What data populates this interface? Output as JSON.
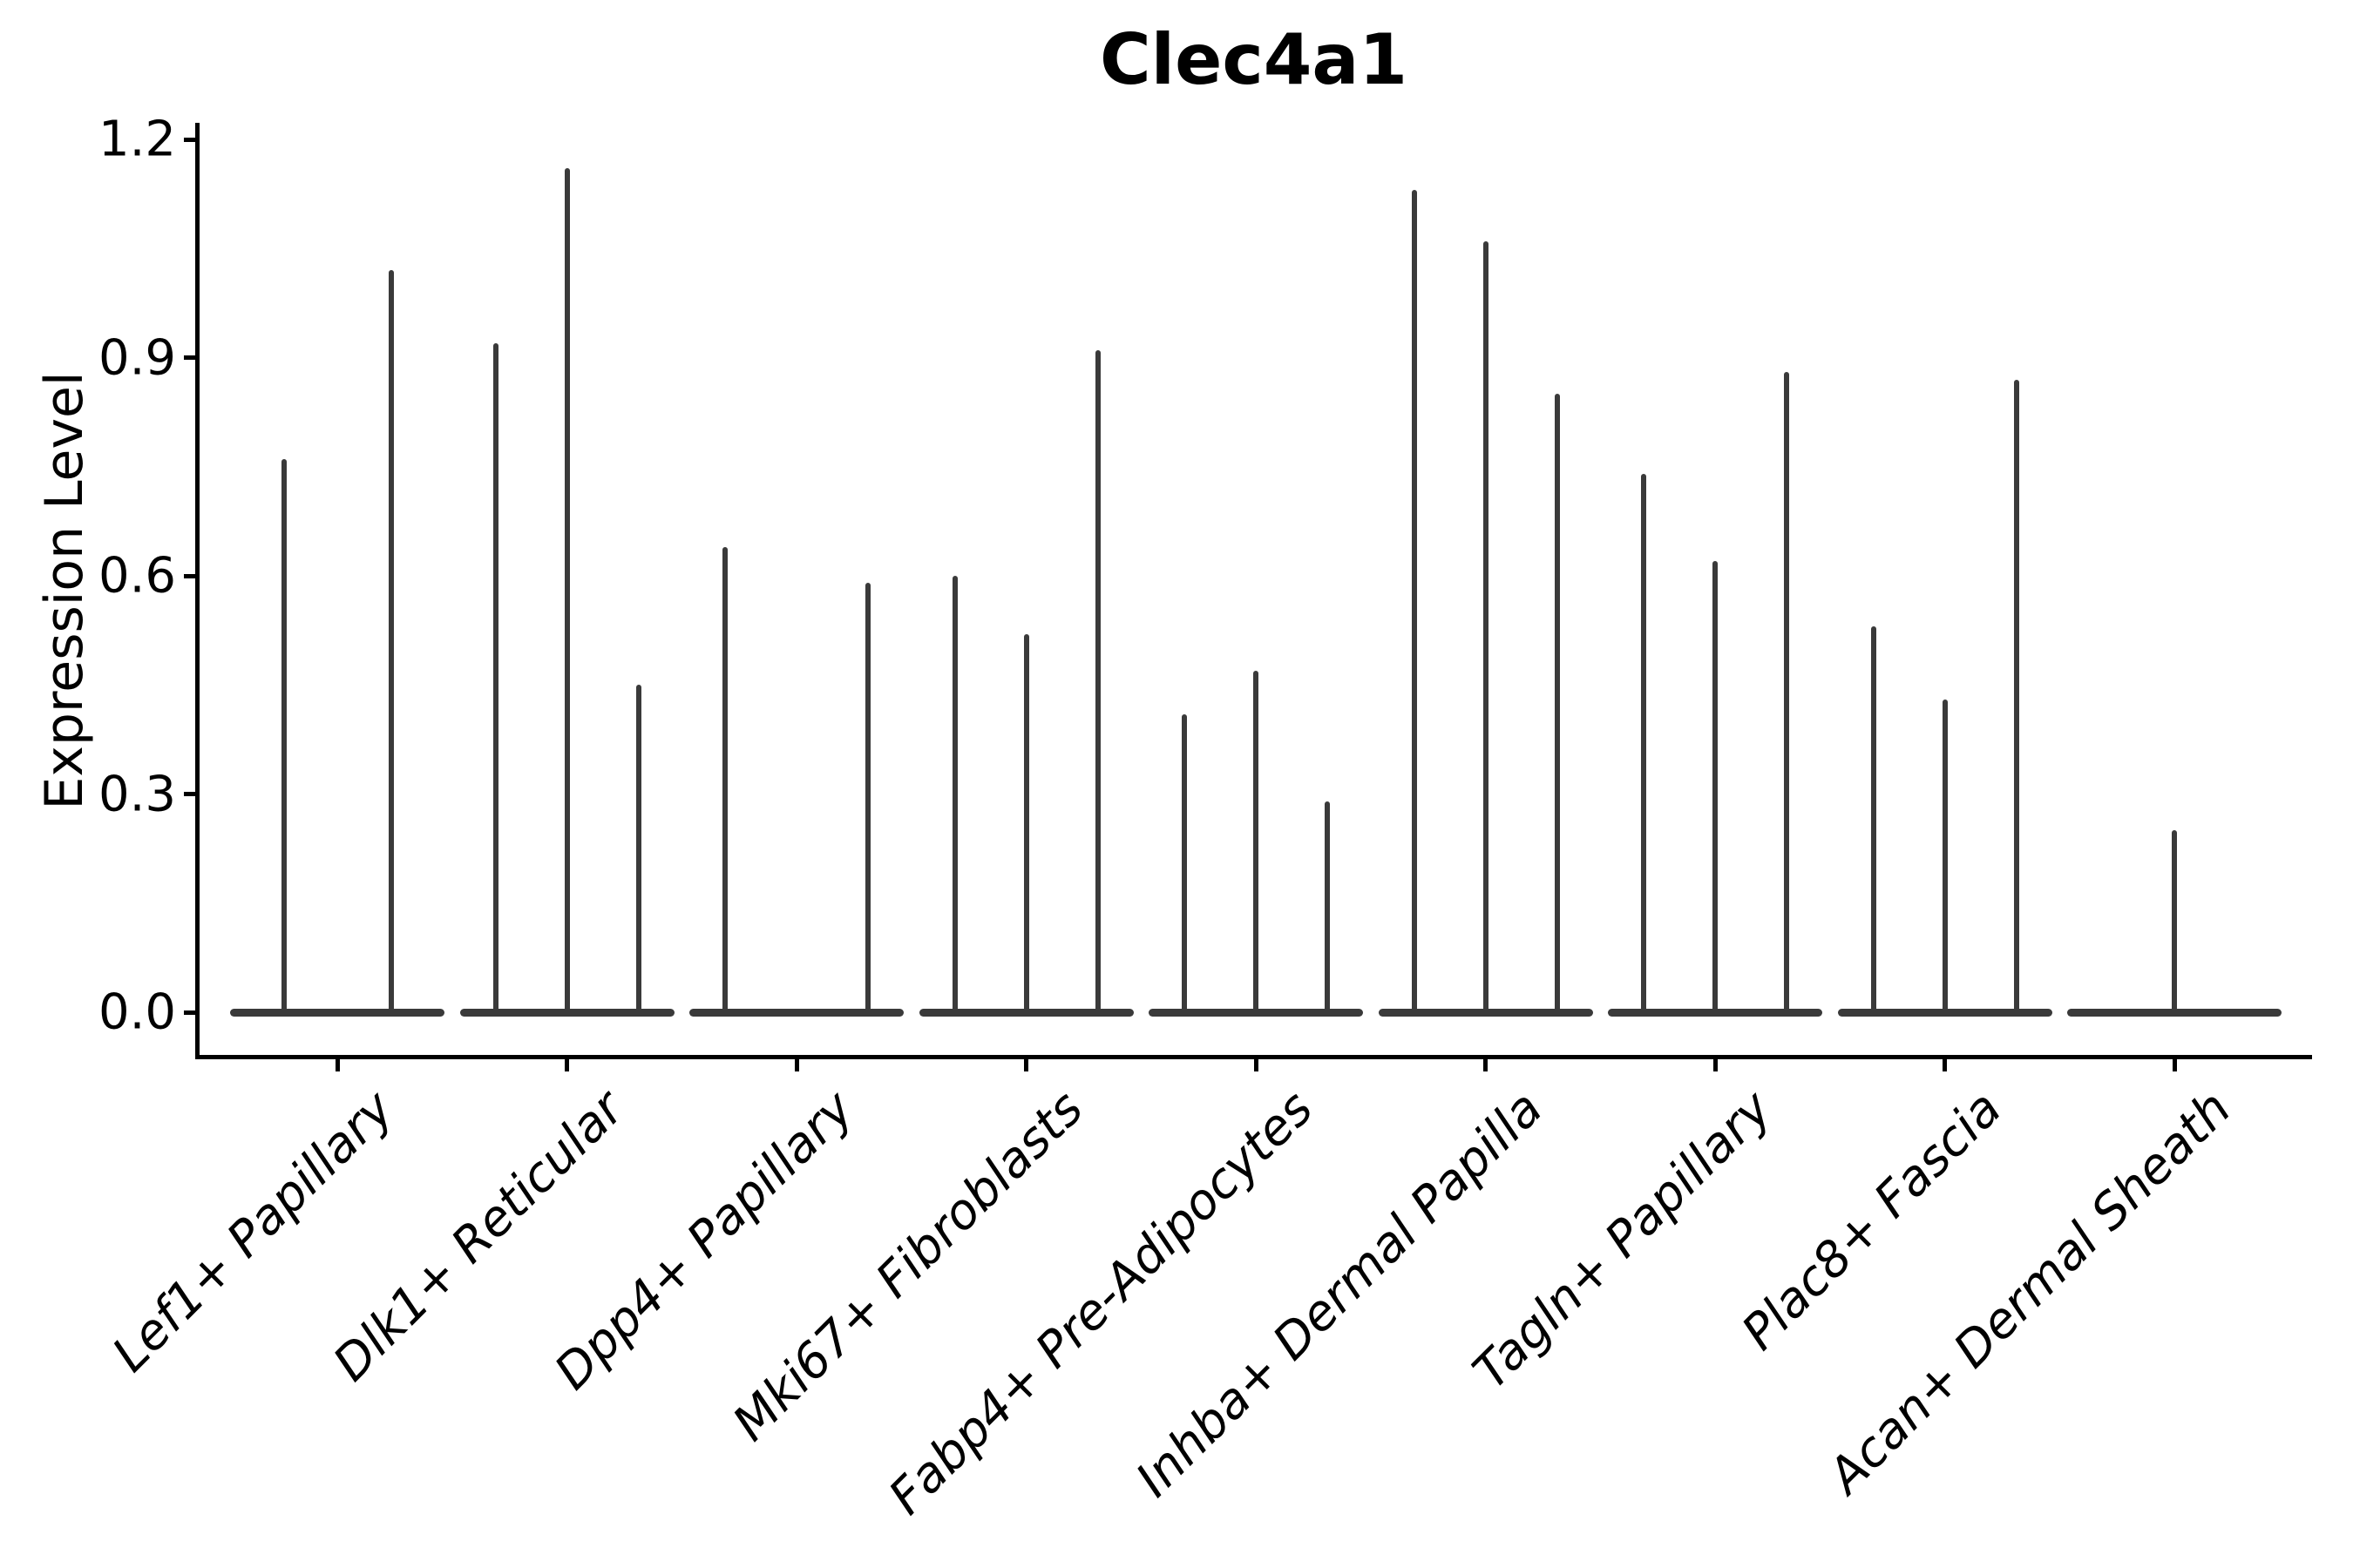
{
  "figure": {
    "title": "Clec4a1",
    "y_axis_label": "Expression Level"
  },
  "chart_data": {
    "type": "violin",
    "title": "Clec4a1",
    "xlabel": "",
    "ylabel": "Expression Level",
    "ylim": [
      -0.06,
      1.22
    ],
    "y_ticks": [
      0.0,
      0.3,
      0.6,
      0.9,
      1.2
    ],
    "y_tick_labels": [
      "0.0",
      "0.3",
      "0.6",
      "0.9",
      "1.2"
    ],
    "grid": false,
    "legend": false,
    "violin_shape": "collapsed-at-zero-with-spike-to-max",
    "violin_min": 0.0,
    "categories": [
      "Lef1+ Papillary",
      "Dlk1+ Reticular",
      "Dpp4+ Papillary",
      "Mki67+ Fibroblasts",
      "Fabp4+ Pre-Adipocytes",
      "Inhba+ Dermal Papilla",
      "Tagln+ Papillary",
      "Plac8+ Fascia",
      "Acan+ Dermal Sheath"
    ],
    "violin_maxima_per_group": [
      [
        0.76,
        1.02
      ],
      [
        0.92,
        1.16,
        0.45
      ],
      [
        0.64,
        null,
        0.59
      ],
      [
        0.6,
        0.52,
        0.91
      ],
      [
        0.41,
        0.47,
        0.29
      ],
      [
        1.13,
        1.06,
        0.85
      ],
      [
        0.74,
        0.62,
        0.88
      ],
      [
        0.53,
        0.43,
        0.87
      ],
      [
        0.25
      ]
    ],
    "colors": {
      "violin": "#3a3a3a",
      "axis": "#000000",
      "background": "#ffffff"
    }
  }
}
